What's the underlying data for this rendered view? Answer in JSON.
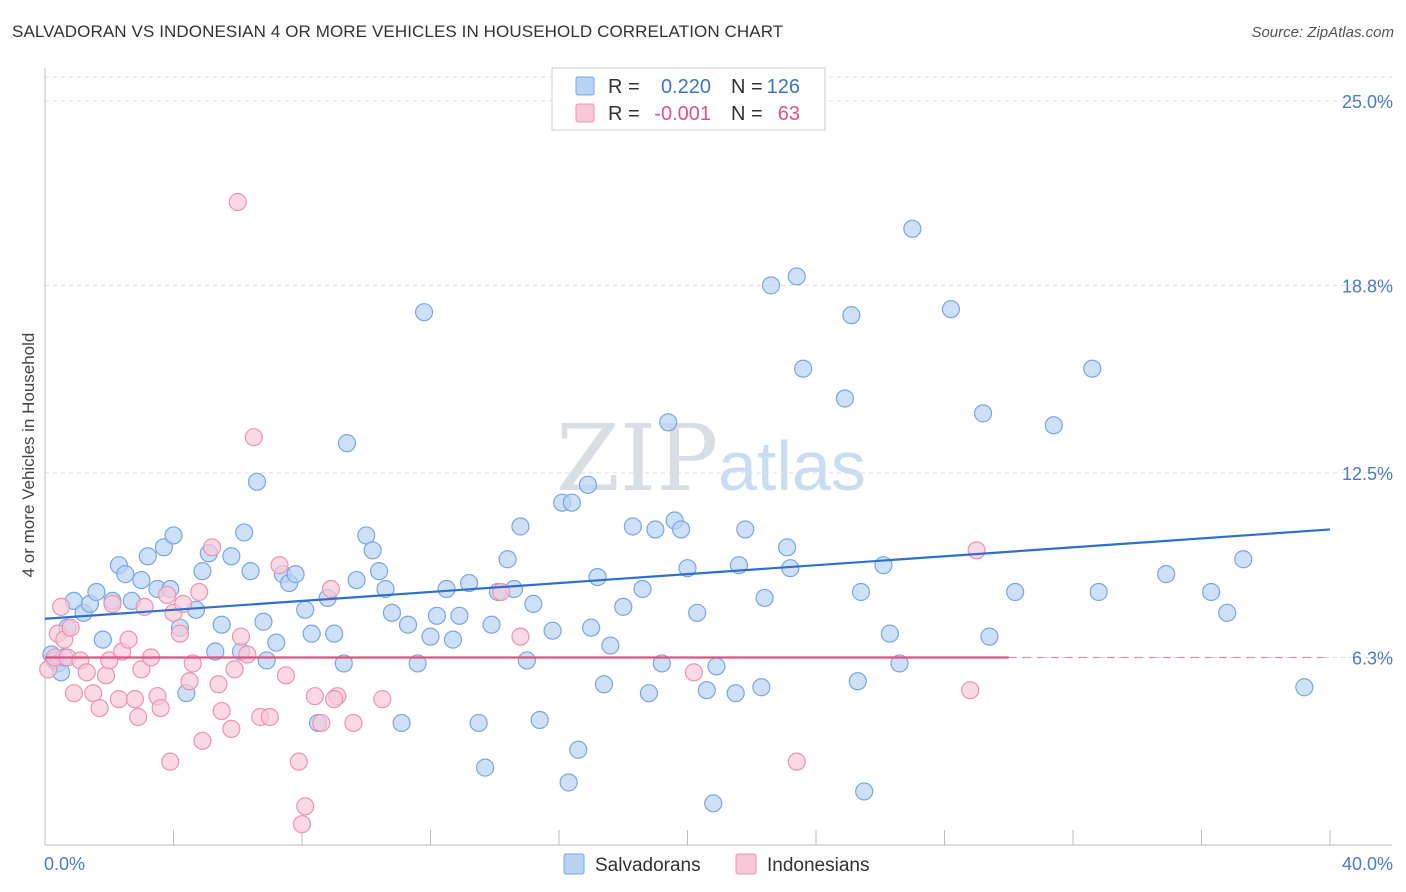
{
  "title": "SALVADORAN VS INDONESIAN 4 OR MORE VEHICLES IN HOUSEHOLD CORRELATION CHART",
  "source": "Source: ZipAtlas.com",
  "watermark": {
    "zip": "ZIP",
    "atlas": "atlas"
  },
  "colors": {
    "blue_fill": "#b9d3f3",
    "blue_stroke": "#7aa6e0",
    "blue_line": "#2f6fcf",
    "pink_fill": "#f8c8d8",
    "pink_stroke": "#ec93b3",
    "pink_line": "#e2507f",
    "grid": "#dddddd",
    "axis": "#bbbbbb"
  },
  "legend": {
    "rows": [
      {
        "r_label": "R =",
        "r_value": "0.220",
        "n_label": "N =",
        "n_value": "126"
      },
      {
        "r_label": "R =",
        "r_value": "-0.001",
        "n_label": "N =",
        "n_value": "63"
      }
    ]
  },
  "chart_data": {
    "type": "scatter",
    "title": "SALVADORAN VS INDONESIAN 4 OR MORE VEHICLES IN HOUSEHOLD CORRELATION CHART",
    "xlabel": "",
    "ylabel": "4 or more Vehicles in Household",
    "xlim": [
      0,
      40
    ],
    "ylim": [
      0,
      25.8
    ],
    "x_tick_labels": [
      "0.0%",
      "40.0%"
    ],
    "y_ticks": [
      6.3,
      12.5,
      18.8,
      25.0
    ],
    "y_tick_labels": [
      "6.3%",
      "12.5%",
      "18.8%",
      "25.0%"
    ],
    "grid": "horizontal dashed",
    "legend_position": "top-center",
    "series": [
      {
        "name": "Salvadorans",
        "color": "#b9d3f3",
        "r": "0.220",
        "n": "126",
        "trend": {
          "x": [
            0,
            40
          ],
          "y": [
            7.6,
            10.6
          ]
        },
        "points": [
          [
            0.2,
            6.4
          ],
          [
            0.3,
            6.2
          ],
          [
            0.4,
            6.1
          ],
          [
            0.5,
            5.8
          ],
          [
            0.6,
            6.3
          ],
          [
            0.7,
            7.3
          ],
          [
            0.9,
            8.2
          ],
          [
            1.2,
            7.8
          ],
          [
            1.4,
            8.1
          ],
          [
            1.6,
            8.5
          ],
          [
            1.8,
            6.9
          ],
          [
            2.1,
            8.2
          ],
          [
            2.3,
            9.4
          ],
          [
            2.5,
            9.1
          ],
          [
            2.7,
            8.2
          ],
          [
            3.0,
            8.9
          ],
          [
            3.2,
            9.7
          ],
          [
            3.5,
            8.6
          ],
          [
            3.7,
            10.0
          ],
          [
            3.9,
            8.6
          ],
          [
            4.0,
            10.4
          ],
          [
            4.2,
            7.3
          ],
          [
            4.4,
            5.1
          ],
          [
            4.7,
            7.9
          ],
          [
            4.9,
            9.2
          ],
          [
            5.1,
            9.8
          ],
          [
            5.3,
            6.5
          ],
          [
            5.5,
            7.4
          ],
          [
            5.8,
            9.7
          ],
          [
            6.1,
            6.5
          ],
          [
            6.2,
            10.5
          ],
          [
            6.4,
            9.2
          ],
          [
            6.6,
            12.2
          ],
          [
            6.8,
            7.5
          ],
          [
            6.9,
            6.2
          ],
          [
            7.2,
            6.8
          ],
          [
            7.4,
            9.1
          ],
          [
            7.6,
            8.8
          ],
          [
            7.8,
            9.1
          ],
          [
            8.1,
            7.9
          ],
          [
            8.3,
            7.1
          ],
          [
            8.5,
            4.1
          ],
          [
            8.8,
            8.3
          ],
          [
            9.0,
            7.1
          ],
          [
            9.3,
            6.1
          ],
          [
            9.4,
            13.5
          ],
          [
            9.7,
            8.9
          ],
          [
            10.0,
            10.4
          ],
          [
            10.2,
            9.9
          ],
          [
            10.4,
            9.2
          ],
          [
            10.6,
            8.6
          ],
          [
            10.8,
            7.8
          ],
          [
            11.1,
            4.1
          ],
          [
            11.3,
            7.4
          ],
          [
            11.6,
            6.1
          ],
          [
            11.8,
            17.9
          ],
          [
            12.0,
            7.0
          ],
          [
            12.2,
            7.7
          ],
          [
            12.5,
            8.6
          ],
          [
            12.7,
            6.9
          ],
          [
            12.9,
            7.7
          ],
          [
            13.2,
            8.8
          ],
          [
            13.5,
            4.1
          ],
          [
            13.7,
            2.6
          ],
          [
            13.9,
            7.4
          ],
          [
            14.1,
            8.5
          ],
          [
            14.4,
            9.6
          ],
          [
            14.6,
            8.6
          ],
          [
            14.8,
            10.7
          ],
          [
            15.0,
            6.2
          ],
          [
            15.2,
            8.1
          ],
          [
            15.4,
            4.2
          ],
          [
            15.8,
            7.2
          ],
          [
            16.1,
            11.5
          ],
          [
            16.3,
            2.1
          ],
          [
            16.4,
            11.5
          ],
          [
            16.6,
            3.2
          ],
          [
            16.9,
            12.1
          ],
          [
            17.0,
            7.3
          ],
          [
            17.2,
            9.0
          ],
          [
            17.4,
            5.4
          ],
          [
            17.6,
            6.7
          ],
          [
            18.0,
            8.0
          ],
          [
            18.3,
            10.7
          ],
          [
            18.6,
            8.6
          ],
          [
            18.8,
            5.1
          ],
          [
            19.0,
            10.6
          ],
          [
            19.2,
            6.1
          ],
          [
            19.4,
            14.2
          ],
          [
            19.6,
            10.9
          ],
          [
            19.8,
            10.6
          ],
          [
            20.0,
            9.3
          ],
          [
            20.3,
            7.8
          ],
          [
            20.6,
            5.2
          ],
          [
            20.8,
            1.4
          ],
          [
            20.9,
            6.0
          ],
          [
            21.5,
            5.1
          ],
          [
            21.6,
            9.4
          ],
          [
            21.8,
            10.6
          ],
          [
            22.3,
            5.3
          ],
          [
            22.4,
            8.3
          ],
          [
            22.6,
            18.8
          ],
          [
            23.1,
            10.0
          ],
          [
            23.2,
            9.3
          ],
          [
            23.4,
            19.1
          ],
          [
            23.6,
            16.0
          ],
          [
            24.9,
            15.0
          ],
          [
            25.1,
            17.8
          ],
          [
            25.3,
            5.5
          ],
          [
            25.4,
            8.5
          ],
          [
            25.5,
            1.8
          ],
          [
            26.1,
            9.4
          ],
          [
            26.3,
            7.1
          ],
          [
            26.6,
            6.1
          ],
          [
            27.0,
            20.7
          ],
          [
            28.2,
            18.0
          ],
          [
            29.2,
            14.5
          ],
          [
            29.4,
            7.0
          ],
          [
            30.2,
            8.5
          ],
          [
            31.4,
            14.1
          ],
          [
            32.6,
            16.0
          ],
          [
            32.8,
            8.5
          ],
          [
            34.9,
            9.1
          ],
          [
            36.3,
            8.5
          ],
          [
            36.8,
            7.8
          ],
          [
            37.3,
            9.6
          ],
          [
            39.2,
            5.3
          ]
        ]
      },
      {
        "name": "Indonesians",
        "color": "#f8c8d8",
        "r": "-0.001",
        "n": "63",
        "trend": {
          "x": [
            0,
            30
          ],
          "y": [
            6.3,
            6.3
          ],
          "dashed_to": 40
        },
        "points": [
          [
            0.1,
            5.9
          ],
          [
            0.3,
            6.3
          ],
          [
            0.4,
            7.1
          ],
          [
            0.5,
            8.0
          ],
          [
            0.6,
            6.9
          ],
          [
            0.7,
            6.3
          ],
          [
            0.8,
            7.3
          ],
          [
            0.9,
            5.1
          ],
          [
            1.1,
            6.2
          ],
          [
            1.3,
            5.8
          ],
          [
            1.5,
            5.1
          ],
          [
            1.7,
            4.6
          ],
          [
            1.9,
            5.7
          ],
          [
            2.0,
            6.2
          ],
          [
            2.1,
            8.1
          ],
          [
            2.3,
            4.9
          ],
          [
            2.4,
            6.5
          ],
          [
            2.6,
            6.9
          ],
          [
            2.8,
            4.9
          ],
          [
            2.9,
            4.3
          ],
          [
            3.0,
            5.9
          ],
          [
            3.1,
            8.0
          ],
          [
            3.3,
            6.3
          ],
          [
            3.5,
            5.0
          ],
          [
            3.6,
            4.6
          ],
          [
            3.8,
            8.4
          ],
          [
            3.9,
            2.8
          ],
          [
            4.0,
            7.8
          ],
          [
            4.2,
            7.1
          ],
          [
            4.3,
            8.1
          ],
          [
            4.5,
            5.5
          ],
          [
            4.6,
            6.1
          ],
          [
            4.8,
            8.5
          ],
          [
            4.9,
            3.5
          ],
          [
            5.2,
            10.0
          ],
          [
            5.4,
            5.4
          ],
          [
            5.5,
            4.5
          ],
          [
            5.8,
            3.9
          ],
          [
            5.9,
            5.9
          ],
          [
            6.0,
            21.6
          ],
          [
            6.1,
            7.0
          ],
          [
            6.3,
            6.4
          ],
          [
            6.5,
            13.7
          ],
          [
            6.7,
            4.3
          ],
          [
            7.0,
            4.3
          ],
          [
            7.3,
            9.4
          ],
          [
            7.5,
            5.7
          ],
          [
            7.9,
            2.8
          ],
          [
            8.1,
            1.3
          ],
          [
            8.4,
            5.0
          ],
          [
            8.6,
            4.1
          ],
          [
            8.9,
            8.6
          ],
          [
            9.1,
            5.0
          ],
          [
            9.6,
            4.1
          ],
          [
            10.5,
            4.9
          ],
          [
            14.2,
            8.5
          ],
          [
            14.8,
            7.0
          ],
          [
            20.2,
            5.8
          ],
          [
            23.4,
            2.8
          ],
          [
            28.8,
            5.2
          ],
          [
            29.0,
            9.9
          ],
          [
            8.0,
            0.7
          ],
          [
            9.0,
            4.9
          ]
        ]
      }
    ]
  },
  "bottom_legend": [
    {
      "label": "Salvadorans"
    },
    {
      "label": "Indonesians"
    }
  ]
}
